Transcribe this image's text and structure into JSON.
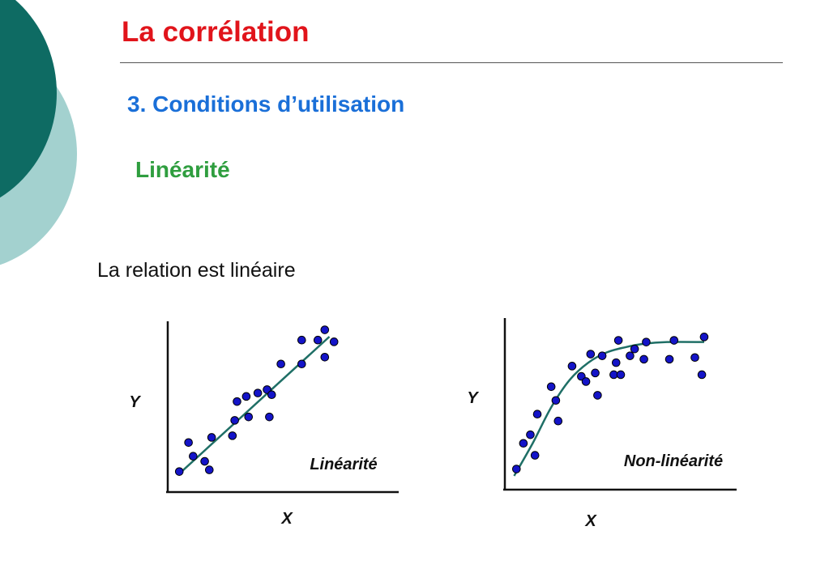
{
  "slide": {
    "title": "La corrélation",
    "section": "3. Conditions d’utilisation",
    "heading": "Linéarité",
    "statement": "La relation est linéaire"
  },
  "colors": {
    "title": "#e1141b",
    "section": "#1a6fd8",
    "heading": "#2f9e3f",
    "accent_dark": "#0e6b63",
    "accent_light": "#a3d1cf",
    "point_fill": "#1414c8",
    "curve": "#1f6f66"
  },
  "chart_data": [
    {
      "type": "scatter",
      "title": "Linéarité",
      "xlabel": "X",
      "ylabel": "Y",
      "xlim": [
        0,
        100
      ],
      "ylim": [
        0,
        100
      ],
      "points": [
        [
          5,
          12
        ],
        [
          9,
          29
        ],
        [
          11,
          21
        ],
        [
          16,
          18
        ],
        [
          18,
          13
        ],
        [
          19,
          32
        ],
        [
          28,
          33
        ],
        [
          29,
          42
        ],
        [
          30,
          53
        ],
        [
          34,
          56
        ],
        [
          35,
          44
        ],
        [
          39,
          58
        ],
        [
          43,
          60
        ],
        [
          44,
          44
        ],
        [
          45,
          57
        ],
        [
          49,
          75
        ],
        [
          58,
          75
        ],
        [
          58,
          89
        ],
        [
          65,
          89
        ],
        [
          68,
          79
        ],
        [
          68,
          95
        ],
        [
          72,
          88
        ]
      ],
      "fit": {
        "kind": "linear",
        "from": [
          6,
          12
        ],
        "to": [
          70,
          91
        ]
      }
    },
    {
      "type": "scatter",
      "title": "Non-linéarité",
      "xlabel": "X",
      "ylabel": "Y",
      "xlim": [
        0,
        100
      ],
      "ylim": [
        0,
        100
      ],
      "points": [
        [
          5,
          12
        ],
        [
          8,
          27
        ],
        [
          11,
          32
        ],
        [
          13,
          20
        ],
        [
          14,
          44
        ],
        [
          20,
          60
        ],
        [
          22,
          52
        ],
        [
          23,
          40
        ],
        [
          29,
          72
        ],
        [
          33,
          66
        ],
        [
          35,
          63
        ],
        [
          37,
          79
        ],
        [
          39,
          68
        ],
        [
          40,
          55
        ],
        [
          42,
          78
        ],
        [
          47,
          67
        ],
        [
          48,
          74
        ],
        [
          49,
          87
        ],
        [
          50,
          67
        ],
        [
          54,
          78
        ],
        [
          56,
          82
        ],
        [
          60,
          76
        ],
        [
          61,
          86
        ],
        [
          71,
          76
        ],
        [
          73,
          87
        ],
        [
          82,
          77
        ],
        [
          85,
          67
        ],
        [
          86,
          89
        ]
      ],
      "fit": {
        "kind": "curve",
        "points": [
          [
            4,
            8
          ],
          [
            12,
            27
          ],
          [
            20,
            48
          ],
          [
            28,
            64
          ],
          [
            36,
            74
          ],
          [
            44,
            80
          ],
          [
            52,
            83
          ],
          [
            60,
            85
          ],
          [
            70,
            86
          ],
          [
            86,
            86
          ]
        ]
      }
    }
  ]
}
